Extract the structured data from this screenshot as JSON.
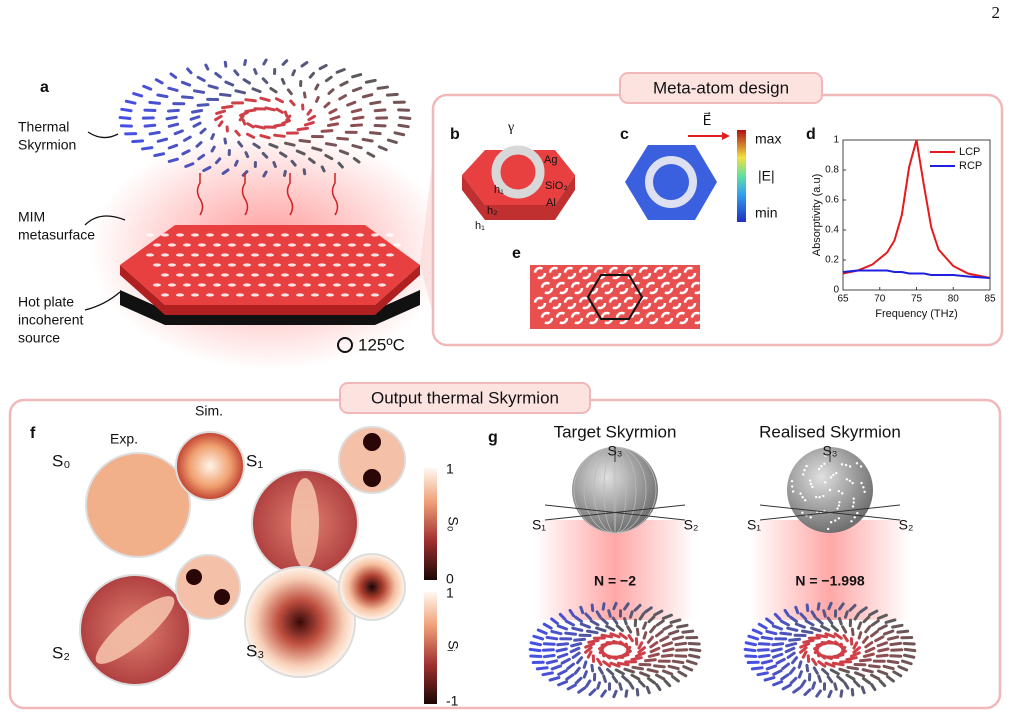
{
  "page_number": "2",
  "panel_a": {
    "label": "a",
    "thermal_skyrmion": [
      "Thermal",
      "Skyrmion"
    ],
    "mim": [
      "MIM",
      "metasurface"
    ],
    "hot_plate": [
      "Hot plate",
      "incoherent",
      "source"
    ],
    "temperature": "125ºC"
  },
  "meta_atom": {
    "title": "Meta-atom design",
    "b": {
      "label": "b",
      "gamma": "γ",
      "ag": "Ag",
      "sio2": "SiO₂",
      "al": "Al",
      "h1": "h₁",
      "h2": "h₂",
      "h1_bottom": "h₁"
    },
    "c": {
      "label": "c",
      "field": "E⃗",
      "max": "max",
      "quantity": "|E|",
      "min": "min"
    },
    "d": {
      "label": "d",
      "xlabel": "Frequency (THz)",
      "ylabel": "Absorptivity (a.u)",
      "xlim": [
        65,
        85
      ],
      "ylim": [
        0,
        1
      ],
      "xticks": [
        65,
        70,
        75,
        80,
        85
      ],
      "yticks": [
        0,
        0.2,
        0.4,
        0.6,
        0.8,
        1
      ],
      "x": [
        65,
        67,
        69,
        71,
        72,
        73,
        74,
        75,
        76,
        77,
        78,
        80,
        82,
        85
      ],
      "series": [
        {
          "name": "LCP",
          "color": "#e41a1c",
          "values": [
            0.11,
            0.13,
            0.17,
            0.25,
            0.33,
            0.5,
            0.82,
            1,
            0.7,
            0.42,
            0.27,
            0.16,
            0.11,
            0.08
          ]
        },
        {
          "name": "RCP",
          "color": "#1f1fe0",
          "values": [
            0.12,
            0.13,
            0.13,
            0.13,
            0.12,
            0.12,
            0.11,
            0.11,
            0.11,
            0.1,
            0.1,
            0.1,
            0.09,
            0.08
          ]
        }
      ]
    },
    "e": {
      "label": "e"
    }
  },
  "output": {
    "title": "Output thermal Skyrmion",
    "f": {
      "label": "f",
      "exp": "Exp.",
      "sim": "Sim.",
      "s0": "S₀",
      "s1": "S₁",
      "s2": "S₂",
      "s3": "S₃",
      "bar1": {
        "top": "1",
        "name": "S₀",
        "bottom": "0"
      },
      "bar2": {
        "top": "1",
        "name": "Sᵢ",
        "bottom": "-1"
      }
    },
    "g": {
      "label": "g",
      "target": {
        "title": "Target Skyrmion",
        "s3": "S₃",
        "s1": "S₁",
        "s2": "S₂",
        "n": "N = −2"
      },
      "realised": {
        "title": "Realised Skyrmion",
        "s3": "S₃",
        "s1": "S₁",
        "s2": "S₂",
        "n": "N = −1.998"
      }
    }
  }
}
